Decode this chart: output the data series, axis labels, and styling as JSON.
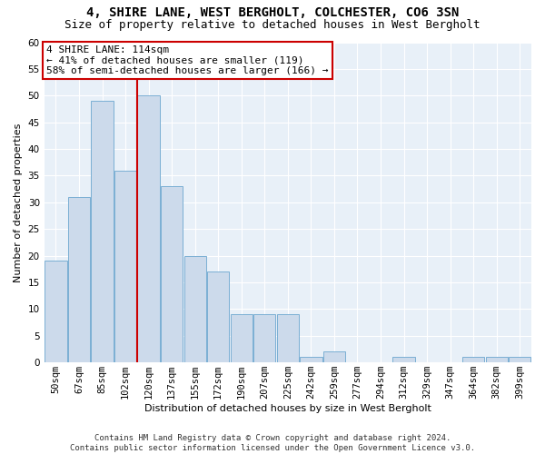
{
  "title_line1": "4, SHIRE LANE, WEST BERGHOLT, COLCHESTER, CO6 3SN",
  "title_line2": "Size of property relative to detached houses in West Bergholt",
  "xlabel": "Distribution of detached houses by size in West Bergholt",
  "ylabel": "Number of detached properties",
  "categories": [
    "50sqm",
    "67sqm",
    "85sqm",
    "102sqm",
    "120sqm",
    "137sqm",
    "155sqm",
    "172sqm",
    "190sqm",
    "207sqm",
    "225sqm",
    "242sqm",
    "259sqm",
    "277sqm",
    "294sqm",
    "312sqm",
    "329sqm",
    "347sqm",
    "364sqm",
    "382sqm",
    "399sqm"
  ],
  "values": [
    19,
    31,
    49,
    36,
    50,
    33,
    20,
    17,
    9,
    9,
    9,
    1,
    2,
    0,
    0,
    1,
    0,
    0,
    1,
    1,
    1
  ],
  "bar_color": "#ccdaeb",
  "bar_edge_color": "#7bafd4",
  "vline_x_index": 4,
  "vline_color": "#cc0000",
  "annotation_text": "4 SHIRE LANE: 114sqm\n← 41% of detached houses are smaller (119)\n58% of semi-detached houses are larger (166) →",
  "annotation_box_facecolor": "#ffffff",
  "annotation_box_edgecolor": "#cc0000",
  "ylim": [
    0,
    60
  ],
  "yticks": [
    0,
    5,
    10,
    15,
    20,
    25,
    30,
    35,
    40,
    45,
    50,
    55,
    60
  ],
  "background_color": "#e8f0f8",
  "grid_color": "#ffffff",
  "footer": "Contains HM Land Registry data © Crown copyright and database right 2024.\nContains public sector information licensed under the Open Government Licence v3.0.",
  "title_fontsize": 10,
  "subtitle_fontsize": 9,
  "axis_label_fontsize": 8,
  "tick_fontsize": 7.5,
  "annotation_fontsize": 8,
  "footer_fontsize": 6.5
}
